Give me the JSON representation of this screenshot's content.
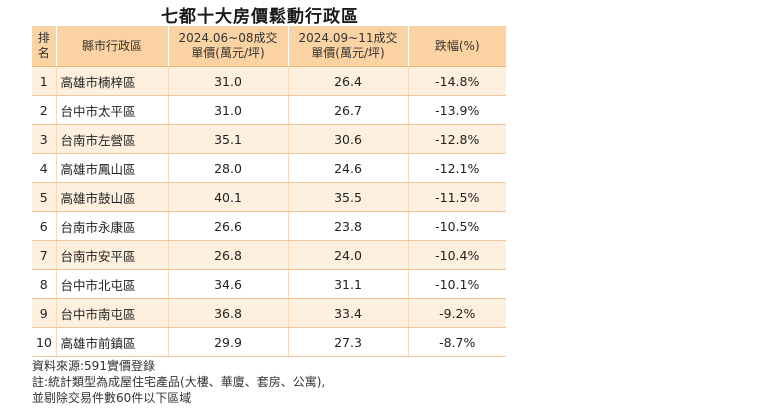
{
  "title": "七都十大房價鬆動行政區",
  "headers": {
    "rank_line1": "排",
    "rank_line2": "名",
    "area": "縣市行政區",
    "before_line1": "2024.06~08成交",
    "before_line2": "單價(萬元/坪)",
    "after_line1": "2024.09~11成交",
    "after_line2": "單價(萬元/坪)",
    "change": "跌幅(%)"
  },
  "rows": [
    {
      "rank": "1",
      "area": "高雄市楠梓區",
      "before": "31.0",
      "after": "26.4",
      "change": "-14.8%"
    },
    {
      "rank": "2",
      "area": "台中市太平區",
      "before": "31.0",
      "after": "26.7",
      "change": "-13.9%"
    },
    {
      "rank": "3",
      "area": "台南市左營區",
      "before": "35.1",
      "after": "30.6",
      "change": "-12.8%"
    },
    {
      "rank": "4",
      "area": "高雄市鳳山區",
      "before": "28.0",
      "after": "24.6",
      "change": "-12.1%"
    },
    {
      "rank": "5",
      "area": "高雄市鼓山區",
      "before": "40.1",
      "after": "35.5",
      "change": "-11.5%"
    },
    {
      "rank": "6",
      "area": "台南市永康區",
      "before": "26.6",
      "after": "23.8",
      "change": "-10.5%"
    },
    {
      "rank": "7",
      "area": "台南市安平區",
      "before": "26.8",
      "after": "24.0",
      "change": "-10.4%"
    },
    {
      "rank": "8",
      "area": "台中市北屯區",
      "before": "34.6",
      "after": "31.1",
      "change": "-10.1%"
    },
    {
      "rank": "9",
      "area": "台中市南屯區",
      "before": "36.8",
      "after": "33.4",
      "change": "-9.2%"
    },
    {
      "rank": "10",
      "area": "高雄市前鎮區",
      "before": "29.9",
      "after": "27.3",
      "change": "-8.7%"
    }
  ],
  "notes": {
    "source": "資料來源:591實價登錄",
    "note1": "註:統計類型為成屋住宅產品(大樓、華廈、套房、公寓),",
    "note2": "並剔除交易件數60件以下區域"
  },
  "colors": {
    "header_bg": "#fbd3a3",
    "row_alt_bg": "#fef0df"
  }
}
